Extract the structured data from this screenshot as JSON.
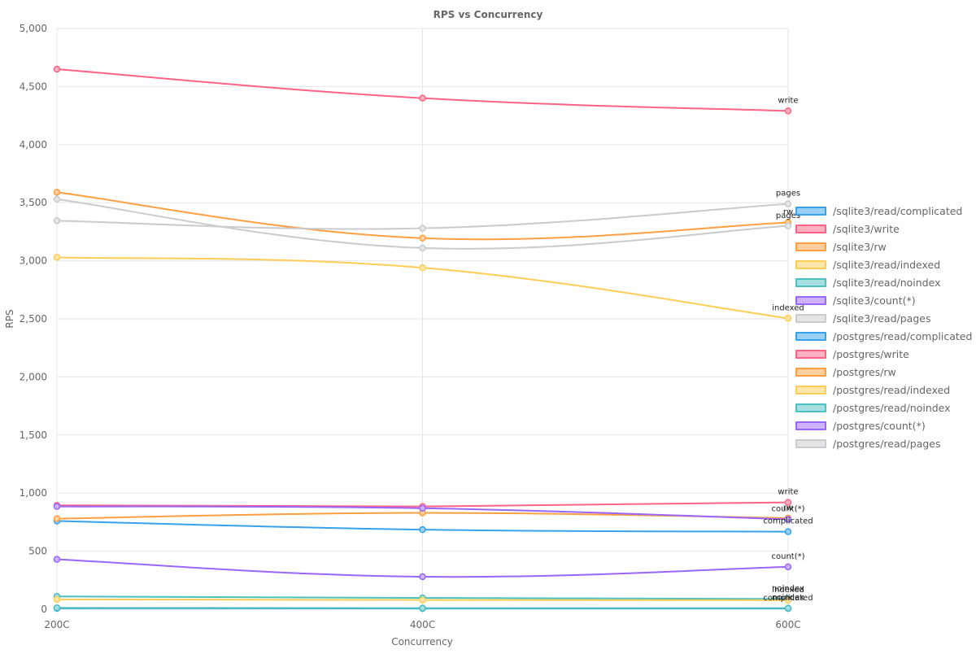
{
  "chart_data": {
    "type": "line",
    "title": "RPS vs Concurrency",
    "xlabel": "Concurrency",
    "ylabel": "RPS",
    "categories": [
      "200C",
      "400C",
      "600C"
    ],
    "ylim": [
      0,
      5000
    ],
    "yticks": [
      0,
      500,
      1000,
      1500,
      2000,
      2500,
      3000,
      3500,
      4000,
      4500,
      5000
    ],
    "ytick_labels": [
      "0",
      "500",
      "1,000",
      "1,500",
      "2,000",
      "2,500",
      "3,000",
      "3,500",
      "4,000",
      "4,500",
      "5,000"
    ],
    "grid": true,
    "legend_position": "right",
    "series": [
      {
        "name": "/sqlite3/read/complicated",
        "color": "#36a2eb",
        "fill": "#9ad0f5",
        "values": [
          8,
          7,
          7
        ],
        "end_label": "complicated"
      },
      {
        "name": "/sqlite3/write",
        "color": "#ff6384",
        "fill": "#ffb1c1",
        "values": [
          4650,
          4400,
          4290
        ],
        "end_label": "write"
      },
      {
        "name": "/sqlite3/rw",
        "color": "#ff9f40",
        "fill": "#ffcf9f",
        "values": [
          3590,
          3195,
          3330
        ],
        "end_label": "rw"
      },
      {
        "name": "/sqlite3/read/indexed",
        "color": "#ffcd56",
        "fill": "#ffe6aa",
        "values": [
          3030,
          2940,
          2505
        ],
        "end_label": "indexed"
      },
      {
        "name": "/sqlite3/read/noindex",
        "color": "#4bc0c0",
        "fill": "#a5dfdf",
        "values": [
          110,
          98,
          88
        ],
        "end_label": "noindex"
      },
      {
        "name": "/sqlite3/count(*)",
        "color": "#9966ff",
        "fill": "#ccb2ff",
        "values": [
          430,
          280,
          365
        ],
        "end_label": "count(*)"
      },
      {
        "name": "/sqlite3/read/pages",
        "color": "#c9cbcf",
        "fill": "#e4e5e7",
        "values": [
          3530,
          3110,
          3300
        ],
        "end_label": "pages"
      },
      {
        "name": "/postgres/read/complicated",
        "color": "#36a2eb",
        "fill": "#9ad0f5",
        "values": [
          760,
          685,
          668
        ],
        "end_label": "complicated"
      },
      {
        "name": "/postgres/write",
        "color": "#ff6384",
        "fill": "#ffb1c1",
        "values": [
          895,
          885,
          920
        ],
        "end_label": "write"
      },
      {
        "name": "/postgres/rw",
        "color": "#ff9f40",
        "fill": "#ffcf9f",
        "values": [
          780,
          830,
          785
        ],
        "end_label": "rw"
      },
      {
        "name": "/postgres/read/indexed",
        "color": "#ffcd56",
        "fill": "#ffe6aa",
        "values": [
          85,
          80,
          78
        ],
        "end_label": "indexed"
      },
      {
        "name": "/postgres/read/noindex",
        "color": "#4bc0c0",
        "fill": "#a5dfdf",
        "values": [
          12,
          10,
          10
        ],
        "end_label": "noindex"
      },
      {
        "name": "/postgres/count(*)",
        "color": "#9966ff",
        "fill": "#ccb2ff",
        "values": [
          885,
          870,
          775
        ],
        "end_label": "count(*)"
      },
      {
        "name": "/postgres/read/pages",
        "color": "#c9cbcf",
        "fill": "#e4e5e7",
        "values": [
          3345,
          3280,
          3490
        ],
        "end_label": "pages"
      }
    ]
  }
}
